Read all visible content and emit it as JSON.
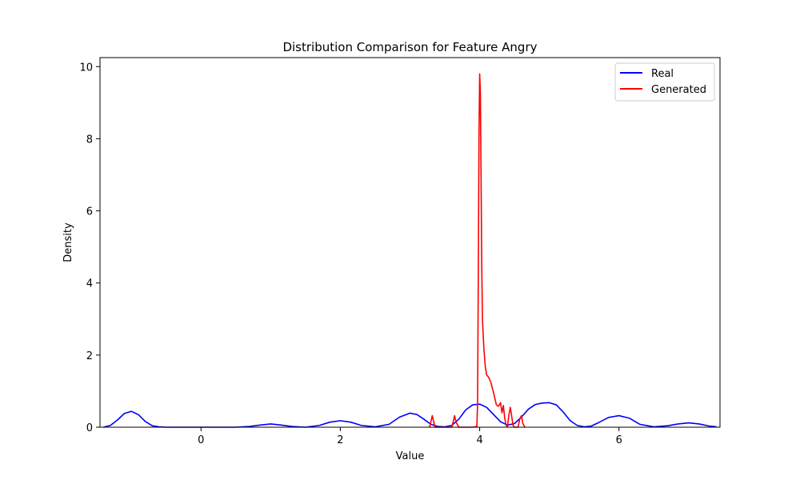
{
  "chart_data": {
    "type": "line",
    "title": "Distribution Comparison for Feature Angry",
    "xlabel": "Value",
    "ylabel": "Density",
    "xlim": [
      -1.45,
      7.45
    ],
    "ylim": [
      0,
      10.25
    ],
    "xticks": [
      0,
      2,
      4,
      6
    ],
    "yticks": [
      0,
      2,
      4,
      6,
      8,
      10
    ],
    "grid": false,
    "legend": "top-right",
    "series": [
      {
        "name": "Real",
        "color": "#0000ff",
        "x": [
          -1.4,
          -1.3,
          -1.2,
          -1.1,
          -1.0,
          -0.9,
          -0.8,
          -0.7,
          -0.6,
          -0.5,
          0.5,
          0.7,
          0.85,
          1.0,
          1.15,
          1.3,
          1.5,
          1.7,
          1.85,
          2.0,
          2.15,
          2.3,
          2.5,
          2.7,
          2.85,
          3.0,
          3.1,
          3.2,
          3.3,
          3.4,
          3.5,
          3.6,
          3.7,
          3.8,
          3.9,
          4.0,
          4.1,
          4.2,
          4.3,
          4.4,
          4.5,
          4.6,
          4.7,
          4.8,
          4.9,
          5.0,
          5.1,
          5.2,
          5.3,
          5.4,
          5.5,
          5.6,
          5.7,
          5.85,
          6.0,
          6.15,
          6.3,
          6.5,
          6.7,
          6.85,
          7.0,
          7.15,
          7.3,
          7.4
        ],
        "y": [
          0.0,
          0.05,
          0.2,
          0.38,
          0.44,
          0.35,
          0.16,
          0.04,
          0.01,
          0.0,
          0.0,
          0.02,
          0.06,
          0.09,
          0.06,
          0.02,
          0.0,
          0.05,
          0.14,
          0.18,
          0.14,
          0.05,
          0.01,
          0.08,
          0.28,
          0.39,
          0.35,
          0.22,
          0.08,
          0.02,
          0.01,
          0.05,
          0.22,
          0.48,
          0.62,
          0.64,
          0.55,
          0.35,
          0.15,
          0.06,
          0.1,
          0.28,
          0.5,
          0.63,
          0.67,
          0.68,
          0.62,
          0.42,
          0.18,
          0.05,
          0.01,
          0.03,
          0.12,
          0.27,
          0.32,
          0.25,
          0.08,
          0.01,
          0.04,
          0.09,
          0.12,
          0.09,
          0.03,
          0.01
        ]
      },
      {
        "name": "Generated",
        "color": "#ff0000",
        "x": [
          3.28,
          3.3,
          3.32,
          3.34,
          3.36,
          3.5,
          3.6,
          3.62,
          3.64,
          3.66,
          3.7,
          3.9,
          3.96,
          3.97,
          3.98,
          3.99,
          4.0,
          4.01,
          4.02,
          4.03,
          4.04,
          4.06,
          4.08,
          4.1,
          4.13,
          4.16,
          4.2,
          4.24,
          4.27,
          4.3,
          4.32,
          4.34,
          4.36,
          4.38,
          4.4,
          4.42,
          4.44,
          4.46,
          4.48,
          4.5,
          4.55,
          4.58,
          4.6,
          4.62,
          4.65
        ],
        "y": [
          0.0,
          0.15,
          0.32,
          0.15,
          0.0,
          0.0,
          0.0,
          0.15,
          0.32,
          0.15,
          0.0,
          0.0,
          0.02,
          0.7,
          4.0,
          8.0,
          9.8,
          9.3,
          7.0,
          4.5,
          3.0,
          2.2,
          1.7,
          1.45,
          1.38,
          1.25,
          0.95,
          0.62,
          0.58,
          0.68,
          0.4,
          0.6,
          0.25,
          0.05,
          0.02,
          0.35,
          0.55,
          0.3,
          0.05,
          0.0,
          0.0,
          0.25,
          0.32,
          0.1,
          0.0
        ]
      }
    ]
  }
}
